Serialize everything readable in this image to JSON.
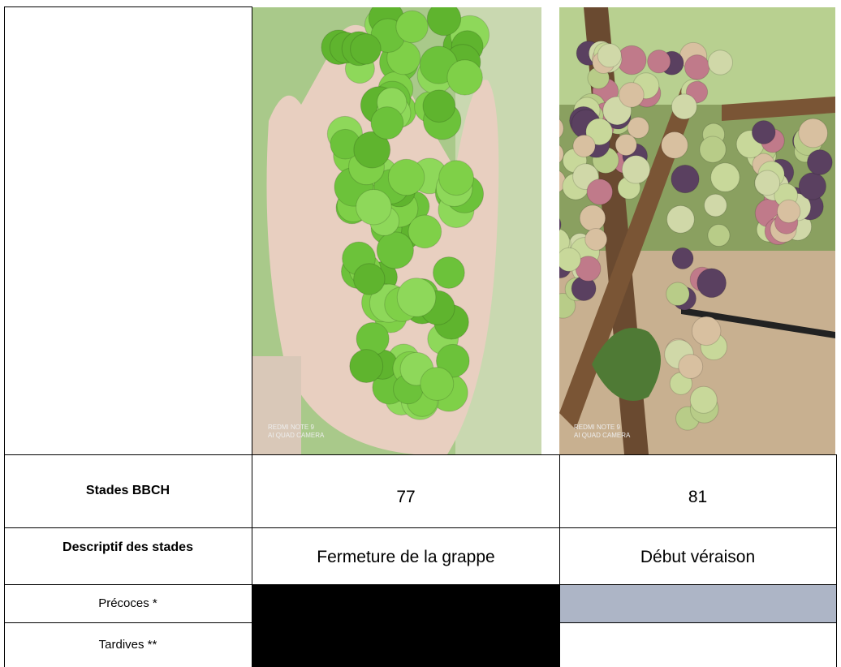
{
  "table": {
    "photos": [
      {
        "watermark": [
          "REDMI NOTE 9",
          "AI QUAD CAMERA"
        ]
      },
      {
        "watermark": [
          "REDMI NOTE 9",
          "AI QUAD CAMERA"
        ]
      }
    ],
    "rows": [
      [
        "Stades BBCH",
        77,
        81
      ],
      [
        "Descriptif des stades",
        "Fermeture de la grappe",
        "Début véraison"
      ],
      [
        "Précoces *"
      ],
      [
        "Tardives **"
      ]
    ]
  }
}
